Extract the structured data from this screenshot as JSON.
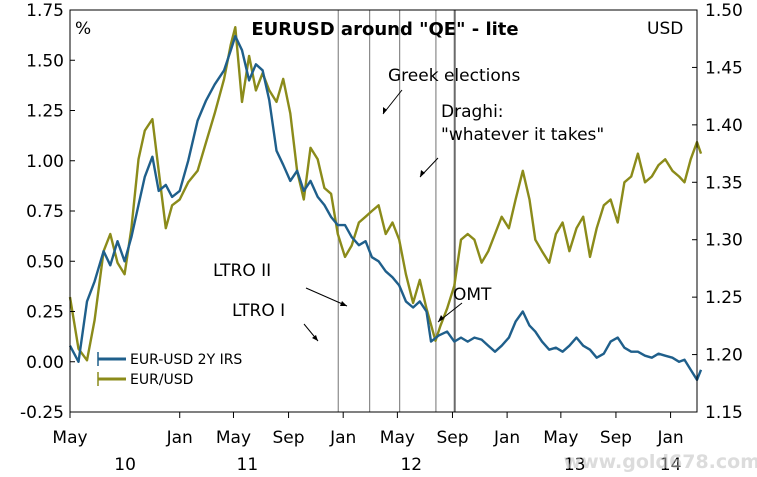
{
  "chart_data": {
    "type": "line",
    "title": "EURUSD around \"QE\" - lite",
    "y_left_label": "%",
    "y_right_label": "USD",
    "y_left_ticks": [
      "-0.25",
      "0.00",
      "0.25",
      "0.50",
      "0.75",
      "1.00",
      "1.25",
      "1.50",
      "1.75"
    ],
    "y_right_ticks": [
      "1.15",
      "1.20",
      "1.25",
      "1.30",
      "1.35",
      "1.40",
      "1.45",
      "1.50"
    ],
    "y_left_range": [
      -0.25,
      1.75
    ],
    "y_right_range": [
      1.15,
      1.5
    ],
    "x_range": [
      "2010-05",
      "2014-03"
    ],
    "x_month_ticks": [
      {
        "label": "May",
        "date": "2010-05"
      },
      {
        "label": "Jan",
        "date": "2011-01"
      },
      {
        "label": "May",
        "date": "2011-05"
      },
      {
        "label": "Sep",
        "date": "2011-09"
      },
      {
        "label": "Jan",
        "date": "2012-01"
      },
      {
        "label": "May",
        "date": "2012-05"
      },
      {
        "label": "Sep",
        "date": "2012-09"
      },
      {
        "label": "Jan",
        "date": "2013-01"
      },
      {
        "label": "May",
        "date": "2013-05"
      },
      {
        "label": "Sep",
        "date": "2013-09"
      },
      {
        "label": "Jan",
        "date": "2014-01"
      }
    ],
    "x_year_labels": [
      {
        "label": "10",
        "date": "2010-09"
      },
      {
        "label": "11",
        "date": "2011-06"
      },
      {
        "label": "12",
        "date": "2012-06"
      },
      {
        "label": "13",
        "date": "2013-06"
      },
      {
        "label": "14",
        "date": "2014-01"
      }
    ],
    "series": [
      {
        "name": "EUR-USD 2Y IRS",
        "axis": "left",
        "color": "#1f5f8b",
        "points": [
          [
            "2010-05-01",
            0.08
          ],
          [
            "2010-05-20",
            0.0
          ],
          [
            "2010-06-08",
            0.3
          ],
          [
            "2010-06-25",
            0.4
          ],
          [
            "2010-07-15",
            0.55
          ],
          [
            "2010-07-30",
            0.48
          ],
          [
            "2010-08-15",
            0.6
          ],
          [
            "2010-08-31",
            0.5
          ],
          [
            "2010-09-15",
            0.62
          ],
          [
            "2010-10-01",
            0.78
          ],
          [
            "2010-10-15",
            0.92
          ],
          [
            "2010-11-01",
            1.02
          ],
          [
            "2010-11-15",
            0.85
          ],
          [
            "2010-12-01",
            0.88
          ],
          [
            "2010-12-15",
            0.82
          ],
          [
            "2011-01-01",
            0.85
          ],
          [
            "2011-01-20",
            1.0
          ],
          [
            "2011-02-10",
            1.2
          ],
          [
            "2011-03-01",
            1.3
          ],
          [
            "2011-03-20",
            1.38
          ],
          [
            "2011-04-10",
            1.45
          ],
          [
            "2011-04-25",
            1.55
          ],
          [
            "2011-05-05",
            1.62
          ],
          [
            "2011-05-20",
            1.55
          ],
          [
            "2011-06-05",
            1.4
          ],
          [
            "2011-06-20",
            1.48
          ],
          [
            "2011-07-05",
            1.45
          ],
          [
            "2011-07-20",
            1.3
          ],
          [
            "2011-08-05",
            1.05
          ],
          [
            "2011-08-20",
            0.98
          ],
          [
            "2011-09-05",
            0.9
          ],
          [
            "2011-09-20",
            0.95
          ],
          [
            "2011-10-05",
            0.85
          ],
          [
            "2011-10-20",
            0.9
          ],
          [
            "2011-11-05",
            0.82
          ],
          [
            "2011-11-20",
            0.78
          ],
          [
            "2011-12-05",
            0.72
          ],
          [
            "2011-12-20",
            0.68
          ],
          [
            "2012-01-05",
            0.68
          ],
          [
            "2012-01-20",
            0.62
          ],
          [
            "2012-02-05",
            0.58
          ],
          [
            "2012-02-20",
            0.6
          ],
          [
            "2012-03-05",
            0.52
          ],
          [
            "2012-03-20",
            0.5
          ],
          [
            "2012-04-05",
            0.45
          ],
          [
            "2012-04-20",
            0.42
          ],
          [
            "2012-05-05",
            0.38
          ],
          [
            "2012-05-20",
            0.3
          ],
          [
            "2012-06-05",
            0.27
          ],
          [
            "2012-06-20",
            0.3
          ],
          [
            "2012-07-05",
            0.25
          ],
          [
            "2012-07-15",
            0.1
          ],
          [
            "2012-08-01",
            0.13
          ],
          [
            "2012-08-20",
            0.15
          ],
          [
            "2012-09-05",
            0.1
          ],
          [
            "2012-09-20",
            0.12
          ],
          [
            "2012-10-05",
            0.1
          ],
          [
            "2012-10-20",
            0.12
          ],
          [
            "2012-11-05",
            0.11
          ],
          [
            "2012-11-20",
            0.08
          ],
          [
            "2012-12-05",
            0.05
          ],
          [
            "2012-12-20",
            0.08
          ],
          [
            "2013-01-05",
            0.12
          ],
          [
            "2013-01-20",
            0.2
          ],
          [
            "2013-02-05",
            0.25
          ],
          [
            "2013-02-20",
            0.18
          ],
          [
            "2013-03-05",
            0.15
          ],
          [
            "2013-03-20",
            0.1
          ],
          [
            "2013-04-05",
            0.06
          ],
          [
            "2013-04-20",
            0.07
          ],
          [
            "2013-05-05",
            0.05
          ],
          [
            "2013-05-20",
            0.08
          ],
          [
            "2013-06-05",
            0.12
          ],
          [
            "2013-06-20",
            0.08
          ],
          [
            "2013-07-05",
            0.06
          ],
          [
            "2013-07-20",
            0.02
          ],
          [
            "2013-08-05",
            0.04
          ],
          [
            "2013-08-20",
            0.1
          ],
          [
            "2013-09-05",
            0.12
          ],
          [
            "2013-09-20",
            0.07
          ],
          [
            "2013-10-05",
            0.05
          ],
          [
            "2013-10-20",
            0.05
          ],
          [
            "2013-11-05",
            0.03
          ],
          [
            "2013-11-20",
            0.02
          ],
          [
            "2013-12-05",
            0.04
          ],
          [
            "2013-12-20",
            0.03
          ],
          [
            "2014-01-05",
            0.02
          ],
          [
            "2014-01-20",
            0.0
          ],
          [
            "2014-02-01",
            0.01
          ],
          [
            "2014-02-15",
            -0.04
          ],
          [
            "2014-03-01",
            -0.09
          ],
          [
            "2014-03-10",
            -0.04
          ]
        ]
      },
      {
        "name": "EUR/USD",
        "axis": "right",
        "color": "#8b8b1a",
        "points": [
          [
            "2010-05-01",
            1.25
          ],
          [
            "2010-05-20",
            1.205
          ],
          [
            "2010-06-08",
            1.195
          ],
          [
            "2010-06-25",
            1.23
          ],
          [
            "2010-07-15",
            1.29
          ],
          [
            "2010-07-30",
            1.305
          ],
          [
            "2010-08-15",
            1.28
          ],
          [
            "2010-08-31",
            1.27
          ],
          [
            "2010-09-15",
            1.31
          ],
          [
            "2010-10-01",
            1.37
          ],
          [
            "2010-10-15",
            1.395
          ],
          [
            "2010-11-01",
            1.405
          ],
          [
            "2010-11-15",
            1.36
          ],
          [
            "2010-12-01",
            1.31
          ],
          [
            "2010-12-15",
            1.33
          ],
          [
            "2011-01-01",
            1.335
          ],
          [
            "2011-01-20",
            1.35
          ],
          [
            "2011-02-10",
            1.36
          ],
          [
            "2011-03-01",
            1.385
          ],
          [
            "2011-03-20",
            1.41
          ],
          [
            "2011-04-10",
            1.44
          ],
          [
            "2011-04-25",
            1.47
          ],
          [
            "2011-05-05",
            1.485
          ],
          [
            "2011-05-20",
            1.42
          ],
          [
            "2011-06-05",
            1.46
          ],
          [
            "2011-06-20",
            1.43
          ],
          [
            "2011-07-05",
            1.445
          ],
          [
            "2011-07-20",
            1.43
          ],
          [
            "2011-08-05",
            1.42
          ],
          [
            "2011-08-20",
            1.44
          ],
          [
            "2011-09-05",
            1.41
          ],
          [
            "2011-09-20",
            1.36
          ],
          [
            "2011-10-05",
            1.335
          ],
          [
            "2011-10-20",
            1.38
          ],
          [
            "2011-11-05",
            1.37
          ],
          [
            "2011-11-20",
            1.345
          ],
          [
            "2011-12-05",
            1.34
          ],
          [
            "2011-12-20",
            1.305
          ],
          [
            "2012-01-05",
            1.285
          ],
          [
            "2012-01-20",
            1.295
          ],
          [
            "2012-02-05",
            1.315
          ],
          [
            "2012-02-20",
            1.32
          ],
          [
            "2012-03-05",
            1.325
          ],
          [
            "2012-03-20",
            1.33
          ],
          [
            "2012-04-05",
            1.305
          ],
          [
            "2012-04-20",
            1.315
          ],
          [
            "2012-05-05",
            1.3
          ],
          [
            "2012-05-20",
            1.27
          ],
          [
            "2012-06-05",
            1.245
          ],
          [
            "2012-06-20",
            1.265
          ],
          [
            "2012-07-05",
            1.24
          ],
          [
            "2012-07-25",
            1.212
          ],
          [
            "2012-08-05",
            1.225
          ],
          [
            "2012-08-20",
            1.24
          ],
          [
            "2012-09-05",
            1.26
          ],
          [
            "2012-09-20",
            1.3
          ],
          [
            "2012-10-05",
            1.305
          ],
          [
            "2012-10-20",
            1.3
          ],
          [
            "2012-11-05",
            1.28
          ],
          [
            "2012-11-20",
            1.29
          ],
          [
            "2012-12-05",
            1.305
          ],
          [
            "2012-12-20",
            1.32
          ],
          [
            "2013-01-05",
            1.31
          ],
          [
            "2013-01-20",
            1.335
          ],
          [
            "2013-02-05",
            1.36
          ],
          [
            "2013-02-20",
            1.335
          ],
          [
            "2013-03-05",
            1.3
          ],
          [
            "2013-03-20",
            1.29
          ],
          [
            "2013-04-05",
            1.28
          ],
          [
            "2013-04-20",
            1.305
          ],
          [
            "2013-05-05",
            1.315
          ],
          [
            "2013-05-20",
            1.29
          ],
          [
            "2013-06-05",
            1.31
          ],
          [
            "2013-06-20",
            1.32
          ],
          [
            "2013-07-05",
            1.285
          ],
          [
            "2013-07-20",
            1.31
          ],
          [
            "2013-08-05",
            1.33
          ],
          [
            "2013-08-20",
            1.335
          ],
          [
            "2013-09-05",
            1.315
          ],
          [
            "2013-09-20",
            1.35
          ],
          [
            "2013-10-05",
            1.355
          ],
          [
            "2013-10-20",
            1.375
          ],
          [
            "2013-11-05",
            1.35
          ],
          [
            "2013-11-20",
            1.355
          ],
          [
            "2013-12-05",
            1.365
          ],
          [
            "2013-12-20",
            1.37
          ],
          [
            "2014-01-05",
            1.36
          ],
          [
            "2014-01-20",
            1.355
          ],
          [
            "2014-02-01",
            1.35
          ],
          [
            "2014-02-15",
            1.37
          ],
          [
            "2014-03-01",
            1.385
          ],
          [
            "2014-03-10",
            1.375
          ]
        ]
      }
    ],
    "event_lines": [
      {
        "label": "LTRO I",
        "date": "2011-12-21"
      },
      {
        "label": "LTRO II",
        "date": "2012-02-29"
      },
      {
        "label": "Greek elections",
        "date": "2012-05-06"
      },
      {
        "label": "Draghi: \"whatever it takes\"",
        "date": "2012-07-26"
      },
      {
        "label": "OMT",
        "date": "2012-09-06"
      }
    ],
    "annotations": {
      "greek": "Greek elections",
      "draghi_1": "Draghi:",
      "draghi_2": "\"whatever it takes\"",
      "ltro2": "LTRO II",
      "ltro1": "LTRO I",
      "omt": "OMT"
    },
    "legend": {
      "placement": "bottom-left",
      "items": [
        "EUR-USD 2Y IRS",
        "EUR/USD"
      ]
    },
    "watermark": "www.gold678.com"
  }
}
